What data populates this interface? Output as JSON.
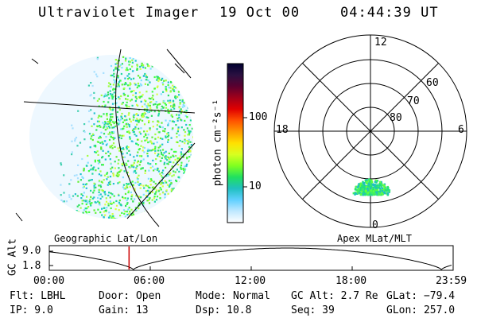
{
  "header": {
    "instrument": "Ultraviolet Imager",
    "date": "19 Oct 00",
    "time": "04:44:39 UT"
  },
  "colorbar": {
    "label": "photon cm⁻²s⁻¹",
    "ticks": [
      "100",
      "10"
    ],
    "colors": [
      "#000030",
      "#2a1040",
      "#5a0030",
      "#a0001a",
      "#e00000",
      "#ff5000",
      "#ff9a00",
      "#ffe000",
      "#d8ff20",
      "#80ff20",
      "#20e060",
      "#20c0c0",
      "#60d0ff",
      "#c0e8ff",
      "#ffffff"
    ]
  },
  "geo_panel": {
    "label": "Geographic Lat/Lon"
  },
  "polar_panel": {
    "label": "Apex MLat/MLT",
    "mlt_labels": {
      "top": "12",
      "left": "18",
      "right": "6",
      "bottom": "0"
    },
    "mlat_labels": [
      "60",
      "70",
      "80"
    ]
  },
  "altitude_plot": {
    "ylabel": "GC Alt",
    "y_ticks": [
      "9.0",
      "1.8"
    ],
    "x_ticks": [
      "00:00",
      "06:00",
      "12:00",
      "18:00",
      "23:59"
    ],
    "marker_hour": 4.74,
    "marker_color": "#cc0000"
  },
  "info": {
    "flt": "Flt: LBHL",
    "door": "Door: Open",
    "mode": "Mode: Normal",
    "gcalt": "GC Alt: 2.7 Re",
    "glat": "GLat: −79.4",
    "ip": "IP:  9.0",
    "gain": "Gain: 13",
    "dsp": "Dsp:   10.8",
    "seq": "Seq: 39",
    "glon": "GLon: 257.0"
  }
}
